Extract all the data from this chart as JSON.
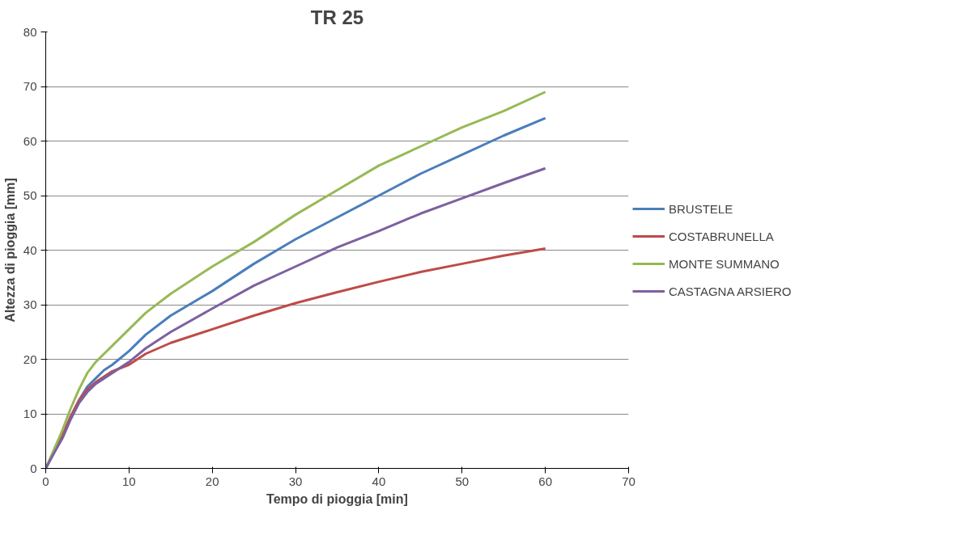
{
  "chart_data": {
    "type": "line",
    "title": "TR 25",
    "xlabel": "Tempo di pioggia [min]",
    "ylabel": "Altezza di pioggia [mm]",
    "x": [
      0,
      1,
      2,
      3,
      4,
      5,
      6,
      7,
      8,
      10,
      12,
      15,
      20,
      25,
      30,
      35,
      40,
      45,
      50,
      55,
      60
    ],
    "series": [
      {
        "name": "BRUSTELE",
        "color": "#4a7ebb",
        "values": [
          0,
          3,
          6,
          9.5,
          12.5,
          15,
          16.5,
          18,
          19,
          21.5,
          24.5,
          28,
          32.5,
          37.5,
          42,
          46,
          50,
          54,
          57.5,
          61,
          64.2
        ]
      },
      {
        "name": "COSTABRUNELLA",
        "color": "#be4b48",
        "values": [
          null,
          3.3,
          6,
          9.5,
          12.5,
          14.5,
          15.8,
          16.8,
          17.8,
          19,
          21,
          23,
          25.5,
          28,
          30.3,
          32.3,
          34.2,
          36,
          37.5,
          39,
          40.3
        ]
      },
      {
        "name": "MONTE SUMMANO",
        "color": "#98b954",
        "values": [
          0,
          3.5,
          7,
          11,
          14.5,
          17.5,
          19.5,
          21,
          22.5,
          25.5,
          28.5,
          32,
          37,
          41.5,
          46.5,
          51,
          55.5,
          59,
          62.5,
          65.5,
          69
        ]
      },
      {
        "name": "CASTAGNA ARSIERO",
        "color": "#7d60a0",
        "values": [
          0,
          2.8,
          5.5,
          9,
          12,
          14,
          15.5,
          16.5,
          17.5,
          19.5,
          22,
          25,
          29.3,
          33.5,
          37,
          40.5,
          43.5,
          46.7,
          49.5,
          52.3,
          55
        ]
      }
    ],
    "xlim": [
      0,
      70
    ],
    "xticks": [
      0,
      10,
      20,
      30,
      40,
      50,
      60,
      70
    ],
    "ylim": [
      0,
      80
    ],
    "yticks": [
      0,
      10,
      20,
      30,
      40,
      50,
      60,
      70,
      80
    ],
    "grid": "y",
    "legend": "right",
    "marker": "none",
    "line_style": "solid"
  }
}
